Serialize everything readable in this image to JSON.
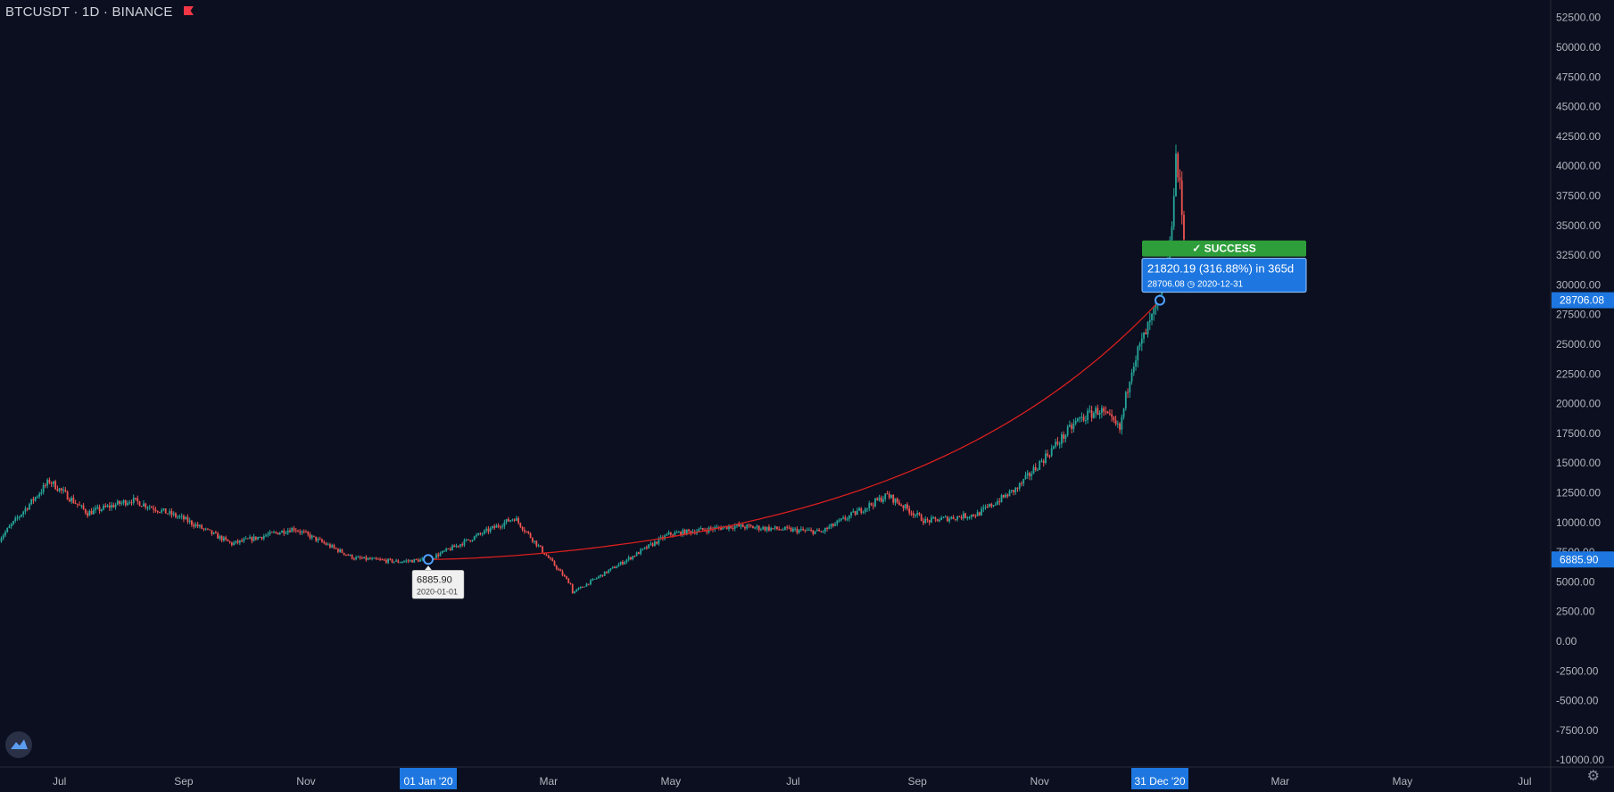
{
  "header": {
    "symbol": "BTCUSDT",
    "interval": "1D",
    "exchange": "BINANCE"
  },
  "chart_data": {
    "type": "candlestick",
    "title": "BTCUSDT · 1D · BINANCE",
    "ylim": [
      -10000,
      53750
    ],
    "y_ticks": [
      52500,
      50000,
      47500,
      45000,
      42500,
      40000,
      37500,
      35000,
      32500,
      30000,
      27500,
      25000,
      22500,
      20000,
      17500,
      15000,
      12500,
      10000,
      7500,
      5000,
      2500,
      0,
      -2500,
      -5000,
      -7500,
      -10000
    ],
    "x_ticks": [
      "Jul",
      "Sep",
      "Nov",
      "01 Jan '20",
      "Mar",
      "May",
      "Jul",
      "Sep",
      "Nov",
      "31 Dec '20",
      "Mar",
      "May",
      "Jul"
    ],
    "price_path": [
      [
        "2019-06-01",
        8600
      ],
      [
        "2019-06-26",
        13500
      ],
      [
        "2019-07-15",
        10800
      ],
      [
        "2019-08-06",
        11900
      ],
      [
        "2019-09-01",
        10300
      ],
      [
        "2019-09-25",
        8200
      ],
      [
        "2019-10-26",
        9500
      ],
      [
        "2019-11-25",
        7000
      ],
      [
        "2019-12-17",
        6700
      ],
      [
        "2020-01-01",
        6885.9
      ],
      [
        "2020-02-13",
        10400
      ],
      [
        "2020-03-12",
        4800
      ],
      [
        "2020-03-13",
        4100
      ],
      [
        "2020-04-30",
        9000
      ],
      [
        "2020-06-01",
        9700
      ],
      [
        "2020-07-15",
        9200
      ],
      [
        "2020-08-17",
        12300
      ],
      [
        "2020-09-05",
        10100
      ],
      [
        "2020-10-01",
        10700
      ],
      [
        "2020-10-21",
        12900
      ],
      [
        "2020-11-20",
        18600
      ],
      [
        "2020-12-01",
        19500
      ],
      [
        "2020-12-11",
        17800
      ],
      [
        "2020-12-17",
        23200
      ],
      [
        "2020-12-31",
        28706.08
      ],
      [
        "2021-01-05",
        33000
      ],
      [
        "2021-01-08",
        40800
      ],
      [
        "2021-01-10",
        38000
      ],
      [
        "2021-01-12",
        34000
      ]
    ],
    "measurement": {
      "status": "SUCCESS",
      "change_text": "21820.19 (316.88%) in 365d",
      "start": {
        "price_label": "6885.90",
        "date_label": "2020-01-01",
        "price": 6885.9
      },
      "end": {
        "price_label": "28706.08",
        "date_label": "2020-12-31",
        "price": 28706.08
      }
    },
    "colors": {
      "up": "#26a69a",
      "down": "#ef5350",
      "curve": "#d81f1f",
      "success": "#2e9e3a",
      "info": "#1e77e0"
    }
  },
  "price_labels": {
    "current": "28706.08",
    "start": "6885.90"
  }
}
